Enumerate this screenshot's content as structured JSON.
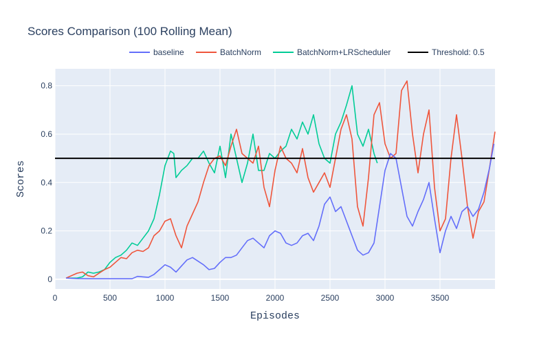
{
  "chart_data": {
    "type": "line",
    "title": "Scores Comparison (100 Rolling Mean)",
    "xlabel": "Episodes",
    "ylabel": "Scores",
    "xlim": [
      0,
      4000
    ],
    "ylim": [
      -0.04,
      0.87
    ],
    "x_ticks": [
      0,
      500,
      1000,
      1500,
      2000,
      2500,
      3000,
      3500
    ],
    "y_ticks": [
      0,
      0.2,
      0.4,
      0.6,
      0.8
    ],
    "y_tick_labels": [
      "0",
      "0.2",
      "0.4",
      "0.6",
      "0.8"
    ],
    "grid": true,
    "legend_position": "top-right",
    "plot_bgcolor": "#e5ecf6",
    "series": [
      {
        "name": "baseline",
        "color": "#636efa",
        "x": [
          100,
          200,
          300,
          400,
          500,
          600,
          700,
          750,
          800,
          850,
          900,
          950,
          1000,
          1050,
          1100,
          1150,
          1200,
          1250,
          1300,
          1350,
          1400,
          1450,
          1500,
          1550,
          1600,
          1650,
          1700,
          1750,
          1800,
          1850,
          1900,
          1950,
          2000,
          2050,
          2100,
          2150,
          2200,
          2250,
          2300,
          2350,
          2400,
          2450,
          2500,
          2550,
          2600,
          2650,
          2700,
          2750,
          2800,
          2850,
          2900,
          2950,
          3000,
          3050,
          3100,
          3150,
          3200,
          3250,
          3300,
          3350,
          3400,
          3450,
          3500,
          3550,
          3600,
          3650,
          3700,
          3750,
          3800,
          3850,
          3900,
          3950,
          3990
        ],
        "y": [
          0.005,
          0.003,
          0.002,
          0.002,
          0.002,
          0.002,
          0.002,
          0.012,
          0.01,
          0.008,
          0.02,
          0.04,
          0.06,
          0.05,
          0.03,
          0.055,
          0.08,
          0.09,
          0.075,
          0.06,
          0.04,
          0.045,
          0.07,
          0.09,
          0.09,
          0.1,
          0.13,
          0.16,
          0.17,
          0.15,
          0.13,
          0.18,
          0.2,
          0.19,
          0.15,
          0.14,
          0.15,
          0.18,
          0.19,
          0.16,
          0.22,
          0.31,
          0.34,
          0.28,
          0.3,
          0.24,
          0.18,
          0.12,
          0.1,
          0.11,
          0.15,
          0.3,
          0.45,
          0.52,
          0.5,
          0.38,
          0.26,
          0.22,
          0.28,
          0.33,
          0.4,
          0.25,
          0.11,
          0.2,
          0.26,
          0.21,
          0.28,
          0.3,
          0.26,
          0.29,
          0.36,
          0.46,
          0.56
        ]
      },
      {
        "name": "BatchNorm",
        "color": "#ef553b",
        "x": [
          100,
          200,
          250,
          300,
          350,
          400,
          450,
          500,
          550,
          600,
          650,
          700,
          750,
          800,
          850,
          900,
          950,
          1000,
          1050,
          1100,
          1150,
          1200,
          1250,
          1300,
          1350,
          1400,
          1450,
          1500,
          1550,
          1600,
          1650,
          1700,
          1750,
          1800,
          1850,
          1900,
          1950,
          2000,
          2050,
          2100,
          2150,
          2200,
          2250,
          2300,
          2350,
          2400,
          2450,
          2500,
          2550,
          2600,
          2650,
          2700,
          2750,
          2800,
          2850,
          2900,
          2950,
          3000,
          3050,
          3100,
          3150,
          3200,
          3250,
          3300,
          3350,
          3400,
          3450,
          3500,
          3550,
          3600,
          3650,
          3700,
          3750,
          3800,
          3850,
          3900,
          3950,
          4000
        ],
        "y": [
          0.005,
          0.025,
          0.03,
          0.015,
          0.01,
          0.025,
          0.04,
          0.05,
          0.07,
          0.09,
          0.085,
          0.11,
          0.12,
          0.115,
          0.13,
          0.18,
          0.2,
          0.24,
          0.25,
          0.18,
          0.13,
          0.22,
          0.27,
          0.32,
          0.4,
          0.47,
          0.5,
          0.51,
          0.47,
          0.55,
          0.62,
          0.52,
          0.5,
          0.48,
          0.55,
          0.38,
          0.3,
          0.45,
          0.55,
          0.5,
          0.48,
          0.44,
          0.54,
          0.42,
          0.36,
          0.4,
          0.44,
          0.38,
          0.5,
          0.62,
          0.68,
          0.58,
          0.3,
          0.22,
          0.42,
          0.68,
          0.73,
          0.56,
          0.5,
          0.52,
          0.78,
          0.82,
          0.6,
          0.44,
          0.6,
          0.7,
          0.38,
          0.2,
          0.25,
          0.5,
          0.68,
          0.5,
          0.3,
          0.17,
          0.28,
          0.32,
          0.46,
          0.61
        ]
      },
      {
        "name": "BatchNorm+LRScheduler",
        "color": "#00cc96",
        "x": [
          100,
          200,
          250,
          300,
          350,
          400,
          450,
          500,
          550,
          600,
          650,
          700,
          750,
          800,
          850,
          900,
          950,
          1000,
          1050,
          1080,
          1100,
          1150,
          1200,
          1250,
          1300,
          1350,
          1400,
          1450,
          1500,
          1550,
          1600,
          1650,
          1700,
          1750,
          1800,
          1850,
          1900,
          1950,
          2000,
          2050,
          2100,
          2150,
          2200,
          2250,
          2300,
          2350,
          2400,
          2450,
          2500,
          2550,
          2600,
          2650,
          2700,
          2750,
          2800,
          2850,
          2900,
          2930
        ],
        "y": [
          0.005,
          0.005,
          0.01,
          0.03,
          0.025,
          0.03,
          0.04,
          0.07,
          0.09,
          0.1,
          0.12,
          0.15,
          0.14,
          0.17,
          0.2,
          0.25,
          0.35,
          0.47,
          0.53,
          0.52,
          0.42,
          0.45,
          0.47,
          0.5,
          0.5,
          0.53,
          0.48,
          0.44,
          0.55,
          0.42,
          0.6,
          0.5,
          0.4,
          0.48,
          0.6,
          0.45,
          0.45,
          0.52,
          0.5,
          0.53,
          0.55,
          0.62,
          0.58,
          0.65,
          0.6,
          0.68,
          0.56,
          0.5,
          0.48,
          0.6,
          0.65,
          0.72,
          0.8,
          0.6,
          0.55,
          0.62,
          0.52,
          0.48
        ]
      },
      {
        "name": "Threshold: 0.5",
        "color": "#000000",
        "x": [
          0,
          4000
        ],
        "y": [
          0.5,
          0.5
        ]
      }
    ]
  }
}
